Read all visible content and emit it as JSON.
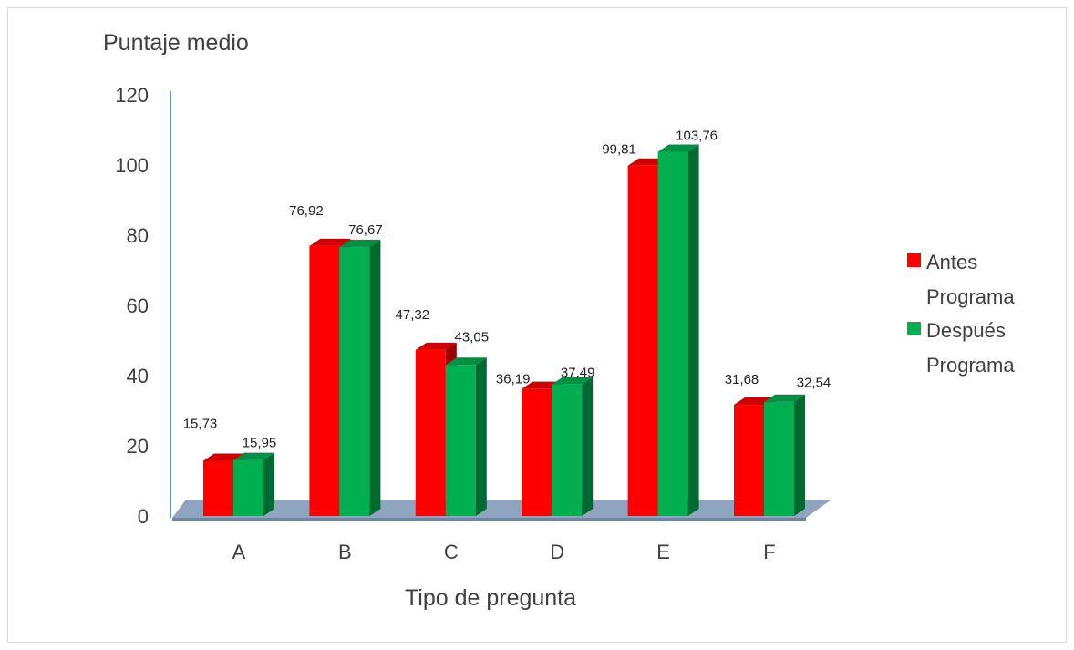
{
  "chart_data": {
    "type": "bar",
    "title": "",
    "ylabel": "Puntaje medio",
    "xlabel": "Tipo de pregunta",
    "categories": [
      "A",
      "B",
      "C",
      "D",
      "E",
      "F"
    ],
    "ylim": [
      0,
      120
    ],
    "yticks": [
      "0",
      "20",
      "40",
      "60",
      "80",
      "100",
      "120"
    ],
    "grid": false,
    "legend": "right",
    "series": [
      {
        "name": "Antes Programa",
        "name_lines": [
          "Antes",
          "Programa"
        ],
        "color": "#ff0000",
        "values": [
          15.73,
          76.92,
          47.32,
          36.19,
          99.81,
          31.68
        ],
        "labels": [
          "15,73",
          "76,92",
          "47,32",
          "36,19",
          "99,81",
          "31,68"
        ]
      },
      {
        "name": "Después Programa",
        "name_lines": [
          "Después",
          "Programa"
        ],
        "color": "#00b050",
        "values": [
          15.95,
          76.67,
          43.05,
          37.49,
          103.76,
          32.54
        ],
        "labels": [
          "15,95",
          "76,67",
          "43,05",
          "37,49",
          "103,76",
          "32,54"
        ]
      }
    ]
  }
}
